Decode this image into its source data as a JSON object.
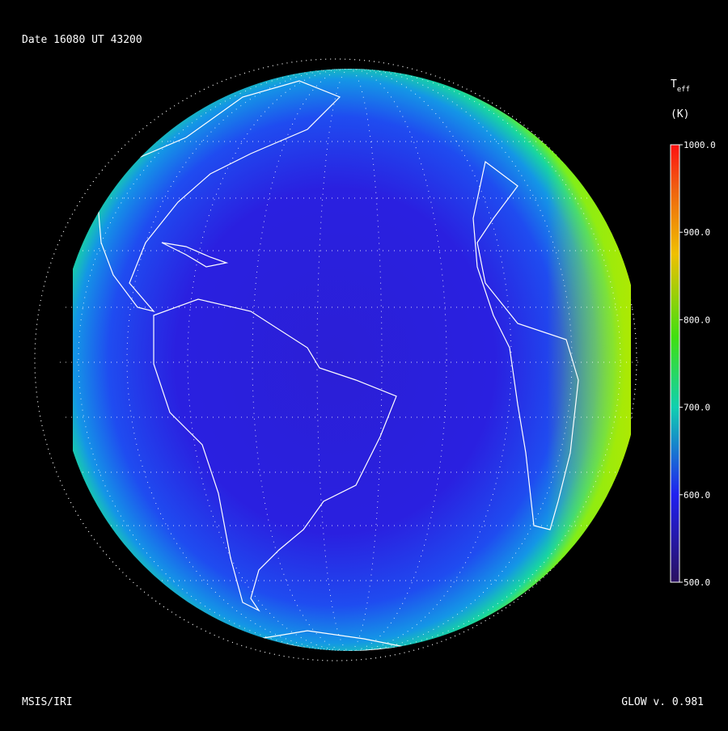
{
  "header": {
    "date_label": "Date 16080  UT 43200"
  },
  "colorbar": {
    "quantity": {
      "symbol": "T",
      "subscript": "eff"
    },
    "unit": "(K)",
    "range": [
      500,
      1000
    ],
    "ticks": [
      {
        "value": 500,
        "label": "500.0"
      },
      {
        "value": 600,
        "label": "600.0"
      },
      {
        "value": 700,
        "label": "700.0"
      },
      {
        "value": 800,
        "label": "800.0"
      },
      {
        "value": 900,
        "label": "900.0"
      },
      {
        "value": 1000,
        "label": "1000.0"
      }
    ]
  },
  "footer": {
    "model": "MSIS/IRI",
    "version": "GLOW v. 0.981"
  }
}
